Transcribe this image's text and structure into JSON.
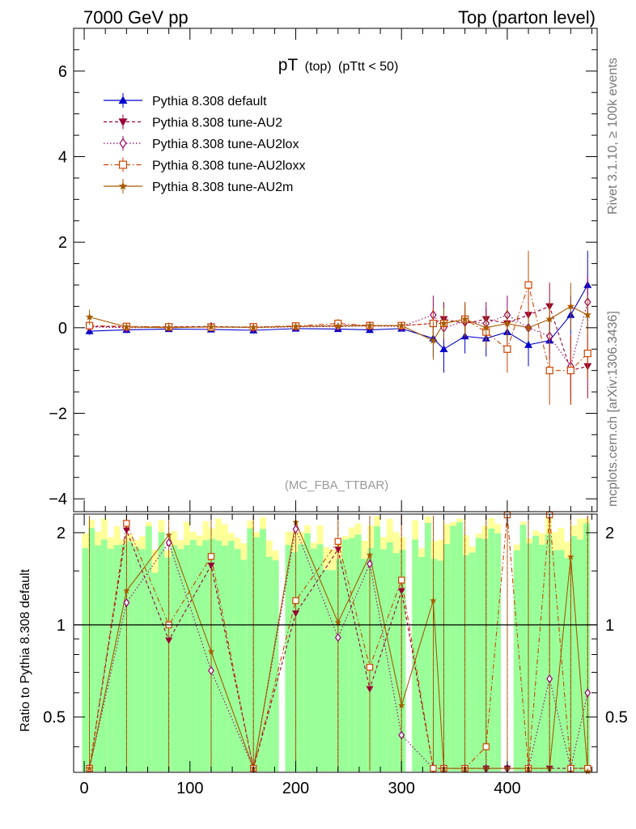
{
  "header": {
    "left": "7000 GeV pp",
    "right": "Top (parton level)"
  },
  "side_labels": {
    "rivet": "Rivet 3.1.10, ≥ 100k events",
    "mcplots": "mcplots.cern.ch [arXiv:1306.3436]"
  },
  "plot": {
    "title_main": "pT",
    "title_sub": "(top)",
    "title_cut": "(pTtt < 50)",
    "analysis_tag": "(MC_FBA_TTBAR)",
    "ratio_ylabel": "Ratio to Pythia 8.308 default"
  },
  "chart_data": {
    "type": "scatter",
    "x_range": [
      -10,
      485
    ],
    "upper": {
      "y_range": [
        -4.3,
        7.0
      ],
      "y_ticks": [
        -4,
        -2,
        0,
        2,
        4,
        6
      ],
      "y_tick_labels": [
        "−4",
        "−2",
        "0",
        "2",
        "4",
        "6"
      ]
    },
    "ratio": {
      "y_range": [
        0.33,
        2.3
      ],
      "y_ticks": [
        0.5,
        1,
        2
      ],
      "y_tick_labels": [
        "0.5",
        "1",
        "2"
      ],
      "reference_line": 1
    },
    "x_ticks": [
      0,
      100,
      200,
      300,
      400
    ],
    "x_tick_labels": [
      "0",
      "100",
      "200",
      "300",
      "400"
    ],
    "legend_position": "top-left",
    "series": [
      {
        "name": "Pythia 8.308 default",
        "color": "#0000cc",
        "marker": "triangle-up",
        "line": "solid",
        "points": [
          [
            5,
            -0.08
          ],
          [
            40,
            -0.05
          ],
          [
            80,
            -0.03
          ],
          [
            120,
            -0.04
          ],
          [
            160,
            -0.06
          ],
          [
            200,
            -0.02
          ],
          [
            240,
            -0.03
          ],
          [
            270,
            -0.05
          ],
          [
            300,
            -0.02
          ],
          [
            330,
            -0.25
          ],
          [
            340,
            -0.5
          ],
          [
            360,
            -0.2
          ],
          [
            380,
            -0.25
          ],
          [
            400,
            -0.1
          ],
          [
            420,
            -0.4
          ],
          [
            440,
            -0.3
          ],
          [
            460,
            0.3
          ],
          [
            476,
            1.0
          ]
        ]
      },
      {
        "name": "Pythia 8.308 tune-AU2",
        "color": "#990033",
        "marker": "triangle-down",
        "line": "dashed",
        "points": [
          [
            5,
            0.03
          ],
          [
            40,
            0.02
          ],
          [
            80,
            0.02
          ],
          [
            120,
            0.03
          ],
          [
            160,
            0.01
          ],
          [
            200,
            0.03
          ],
          [
            240,
            0.05
          ],
          [
            270,
            0.05
          ],
          [
            300,
            0.05
          ],
          [
            330,
            0.1
          ],
          [
            340,
            0.2
          ],
          [
            360,
            0.1
          ],
          [
            380,
            0.2
          ],
          [
            400,
            0.1
          ],
          [
            420,
            0.3
          ],
          [
            440,
            0.5
          ],
          [
            460,
            -1.0
          ],
          [
            476,
            -0.9
          ]
        ]
      },
      {
        "name": "Pythia 8.308 tune-AU2lox",
        "color": "#990066",
        "marker": "diamond-open",
        "line": "dotted",
        "points": [
          [
            5,
            0.02
          ],
          [
            40,
            0.0
          ],
          [
            80,
            0.01
          ],
          [
            120,
            0.02
          ],
          [
            160,
            0.0
          ],
          [
            200,
            0.02
          ],
          [
            240,
            0.03
          ],
          [
            270,
            0.04
          ],
          [
            300,
            0.03
          ],
          [
            330,
            0.3
          ],
          [
            340,
            0.0
          ],
          [
            360,
            0.15
          ],
          [
            380,
            0.1
          ],
          [
            400,
            0.3
          ],
          [
            420,
            0.0
          ],
          [
            440,
            -0.2
          ],
          [
            460,
            -0.9
          ],
          [
            476,
            0.6
          ]
        ]
      },
      {
        "name": "Pythia 8.308 tune-AU2loxx",
        "color": "#cc4400",
        "marker": "square-open",
        "line": "dashdot",
        "points": [
          [
            5,
            0.05
          ],
          [
            40,
            0.03
          ],
          [
            80,
            0.02
          ],
          [
            120,
            0.01
          ],
          [
            160,
            0.02
          ],
          [
            200,
            0.04
          ],
          [
            240,
            0.1
          ],
          [
            270,
            0.05
          ],
          [
            300,
            0.05
          ],
          [
            330,
            0.1
          ],
          [
            340,
            0.1
          ],
          [
            360,
            0.2
          ],
          [
            380,
            -0.1
          ],
          [
            400,
            -0.5
          ],
          [
            420,
            1.0
          ],
          [
            440,
            -1.0
          ],
          [
            460,
            -1.0
          ],
          [
            476,
            -0.6
          ]
        ]
      },
      {
        "name": "Pythia 8.308 tune-AU2m",
        "color": "#a65a00",
        "marker": "star",
        "line": "solid",
        "points": [
          [
            5,
            0.25
          ],
          [
            40,
            0.02
          ],
          [
            80,
            0.0
          ],
          [
            120,
            0.02
          ],
          [
            160,
            0.01
          ],
          [
            200,
            0.03
          ],
          [
            240,
            0.04
          ],
          [
            270,
            0.05
          ],
          [
            300,
            0.05
          ],
          [
            330,
            -0.3
          ],
          [
            340,
            0.1
          ],
          [
            360,
            0.2
          ],
          [
            380,
            0.0
          ],
          [
            400,
            0.1
          ],
          [
            420,
            0.0
          ],
          [
            440,
            0.2
          ],
          [
            460,
            0.5
          ],
          [
            476,
            0.3
          ]
        ]
      }
    ]
  }
}
